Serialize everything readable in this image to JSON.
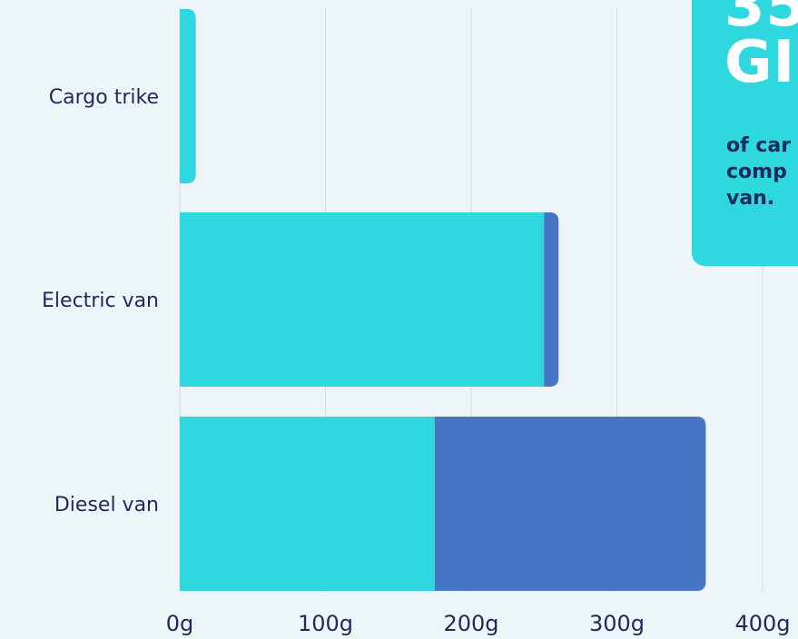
{
  "chart_data": {
    "type": "bar",
    "orientation": "horizontal",
    "stacked": true,
    "categories": [
      "Cargo trike",
      "Electric van",
      "Diesel van"
    ],
    "series": [
      {
        "values": [
          11,
          250,
          175
        ],
        "color": "#2fd8df"
      },
      {
        "values": [
          0,
          10,
          186
        ],
        "color": "#4676c3"
      }
    ],
    "xlim": [
      0,
      400
    ],
    "xticks": [
      "0g",
      "100g",
      "200g",
      "300g",
      "400g"
    ],
    "grid": true
  },
  "callout": {
    "headline": "35\nGI",
    "text": "of car\ncomp\nvan."
  },
  "colors": {
    "background": "#eef5f8",
    "gridline": "#d5dde1",
    "accent": "#2fd8df",
    "secondary": "#4676c3",
    "text": "#1d2a5c"
  }
}
